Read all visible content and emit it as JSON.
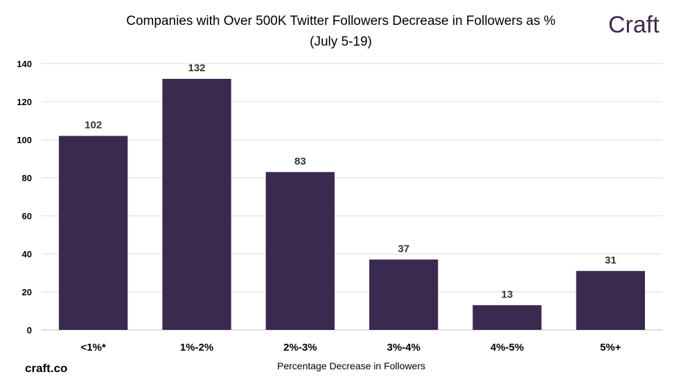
{
  "chart_data": {
    "type": "bar",
    "title_line1": "Companies with Over 500K Twitter Followers Decrease in Followers as %",
    "title_line2": "(July 5-19)",
    "xlabel": "Percentage Decrease in Followers",
    "ylabel": "",
    "categories": [
      "<1%*",
      "1%-2%",
      "2%-3%",
      "3%-4%",
      "4%-5%",
      "5%+"
    ],
    "values": [
      102,
      132,
      83,
      37,
      13,
      31
    ],
    "ylim": [
      0,
      140
    ],
    "yticks": [
      "0",
      "20",
      "40",
      "60",
      "80",
      "100",
      "120",
      "140"
    ],
    "grid": true,
    "bar_color": "#3b2a4f",
    "grid_color": "#d9d9d9"
  },
  "branding": {
    "logo": "Craft",
    "logo_color": "#3b2a4f",
    "source": "craft.co"
  }
}
